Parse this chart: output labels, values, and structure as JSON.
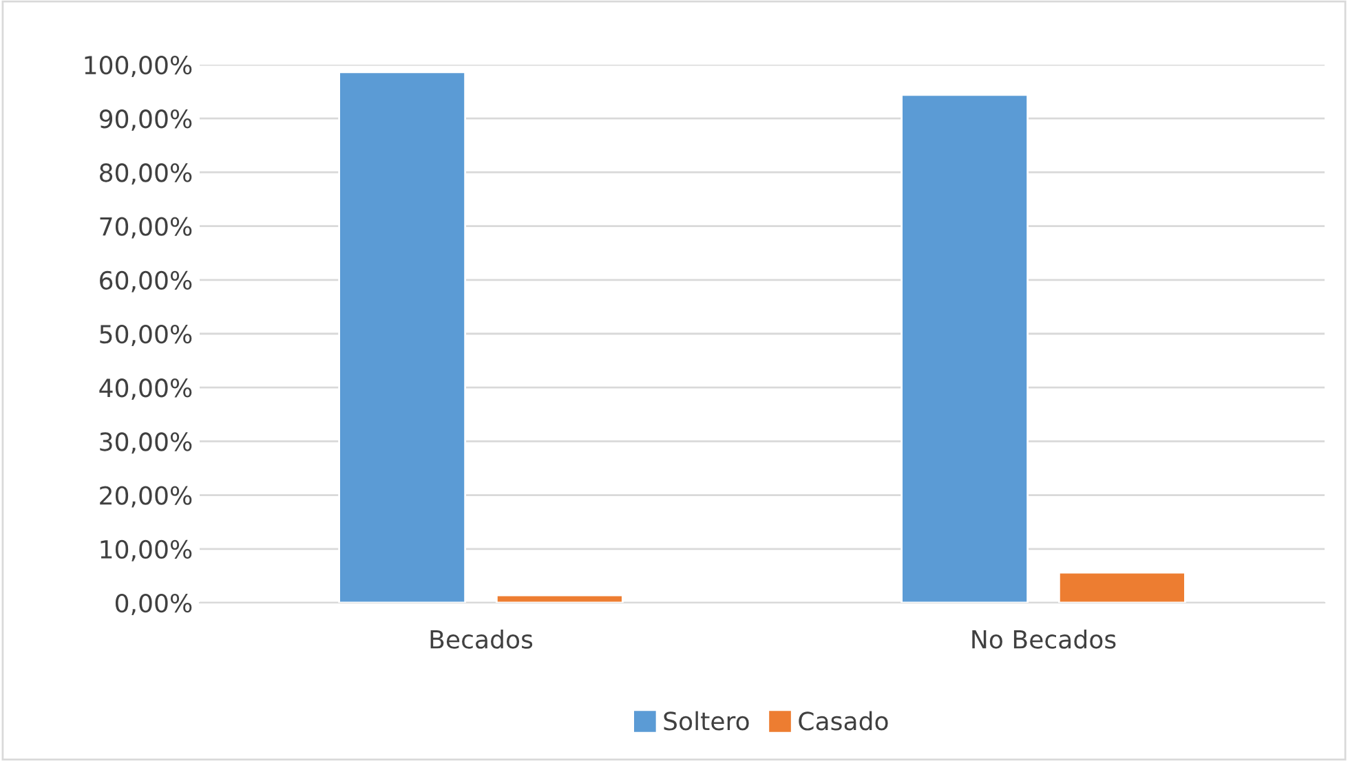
{
  "chart_data": {
    "type": "bar",
    "categories": [
      "Becados",
      "No Becados"
    ],
    "series": [
      {
        "name": "Soltero",
        "color": "#5b9bd5",
        "values": [
          98.6,
          94.4
        ]
      },
      {
        "name": "Casado",
        "color": "#ed7d31",
        "values": [
          1.4,
          5.6
        ]
      }
    ],
    "ylim": [
      0,
      100
    ],
    "yticks": [
      {
        "value": 0,
        "label": "0,00%"
      },
      {
        "value": 10,
        "label": "10,00%"
      },
      {
        "value": 20,
        "label": "20,00%"
      },
      {
        "value": 30,
        "label": "30,00%"
      },
      {
        "value": 40,
        "label": "40,00%"
      },
      {
        "value": 50,
        "label": "50,00%"
      },
      {
        "value": 60,
        "label": "60,00%"
      },
      {
        "value": 70,
        "label": "70,00%"
      },
      {
        "value": 80,
        "label": "80,00%"
      },
      {
        "value": 90,
        "label": "90,00%"
      },
      {
        "value": 100,
        "label": "100,00%"
      }
    ],
    "grid": "y",
    "legend": "bottom"
  }
}
